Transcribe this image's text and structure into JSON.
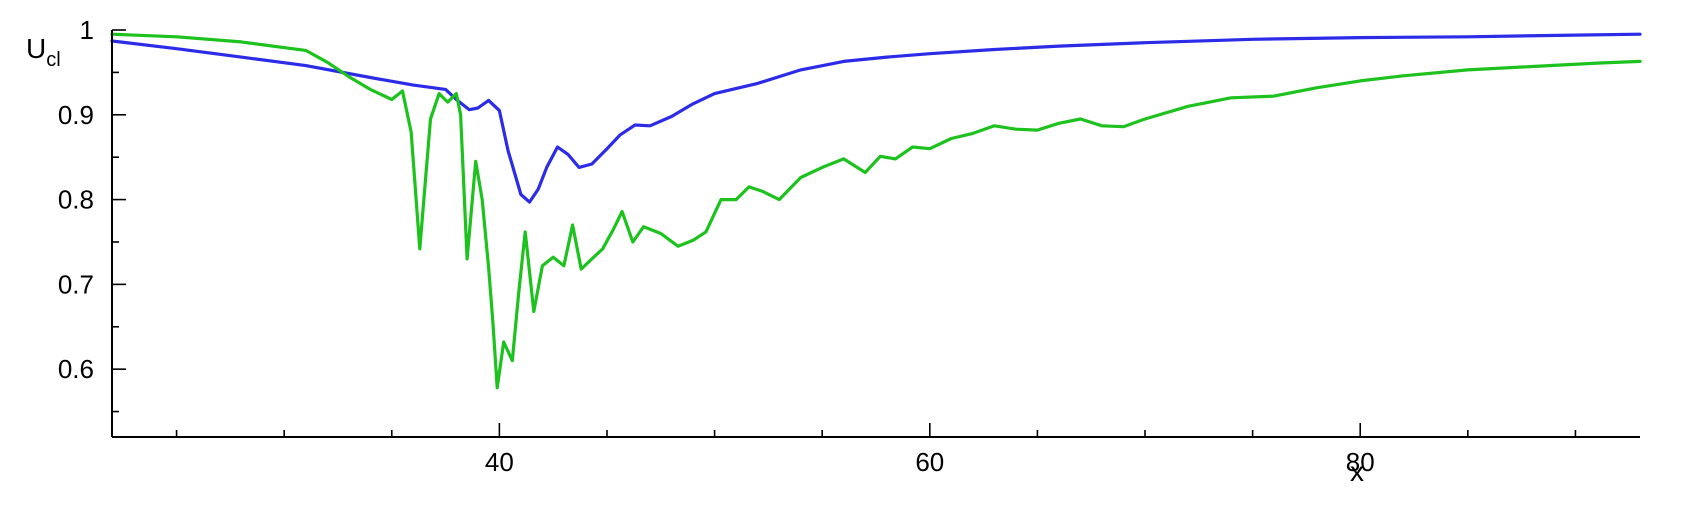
{
  "chart_data": {
    "type": "line",
    "xlabel": "x",
    "ylabel": {
      "main": "U",
      "sub": "cl"
    },
    "xlim": [
      22,
      93
    ],
    "ylim": [
      0.52,
      1.0
    ],
    "x_ticks": [
      {
        "value": 40,
        "label": "40"
      },
      {
        "value": 60,
        "label": "60"
      },
      {
        "value": 80,
        "label": "80"
      }
    ],
    "x_minor_ticks": [
      25,
      30,
      35,
      45,
      50,
      55,
      65,
      70,
      75,
      85,
      90
    ],
    "y_ticks": [
      {
        "value": 0.6,
        "label": "0.6"
      },
      {
        "value": 0.7,
        "label": "0.7"
      },
      {
        "value": 0.8,
        "label": "0.8"
      },
      {
        "value": 0.9,
        "label": "0.9"
      },
      {
        "value": 1.0,
        "label": "1"
      }
    ],
    "y_minor_ticks": [
      0.55,
      0.65,
      0.75,
      0.85,
      0.95
    ],
    "grid": false,
    "series": [
      {
        "color": "#2b2be8",
        "x": [
          22,
          25,
          28,
          31,
          34,
          36,
          37.5,
          38,
          38.6,
          39,
          39.5,
          40,
          40.4,
          41,
          41.4,
          41.8,
          42.2,
          42.7,
          43.2,
          43.7,
          44.3,
          45,
          45.6,
          46.3,
          47,
          48,
          49,
          50,
          52,
          54,
          56,
          58,
          60,
          63,
          66,
          70,
          75,
          80,
          85,
          90,
          93
        ],
        "y": [
          0.987,
          0.978,
          0.968,
          0.958,
          0.944,
          0.935,
          0.93,
          0.918,
          0.906,
          0.908,
          0.917,
          0.905,
          0.858,
          0.806,
          0.797,
          0.812,
          0.838,
          0.862,
          0.853,
          0.838,
          0.842,
          0.86,
          0.876,
          0.888,
          0.887,
          0.898,
          0.913,
          0.925,
          0.937,
          0.953,
          0.963,
          0.968,
          0.972,
          0.977,
          0.981,
          0.985,
          0.989,
          0.991,
          0.992,
          0.994,
          0.995
        ]
      },
      {
        "color": "#1ec21e",
        "x": [
          22,
          25,
          28,
          31,
          32,
          33,
          34,
          35,
          35.5,
          35.9,
          36.3,
          36.8,
          37.2,
          37.6,
          38,
          38.2,
          38.5,
          38.9,
          39.2,
          39.5,
          39.7,
          39.9,
          40.2,
          40.6,
          40.9,
          41.2,
          41.6,
          42,
          42.5,
          43,
          43.4,
          43.8,
          44.3,
          44.8,
          45.3,
          45.7,
          46.2,
          46.7,
          47.5,
          48.3,
          49,
          49.6,
          50.3,
          51,
          51.6,
          52.2,
          53,
          54,
          55,
          56,
          57,
          57.7,
          58.4,
          59.2,
          60,
          61,
          62,
          63,
          64,
          65,
          66,
          67,
          68,
          69,
          70,
          72,
          74,
          76,
          78,
          80,
          82,
          85,
          88,
          91,
          93
        ],
        "y": [
          0.995,
          0.992,
          0.986,
          0.976,
          0.962,
          0.945,
          0.93,
          0.918,
          0.928,
          0.88,
          0.742,
          0.895,
          0.925,
          0.915,
          0.925,
          0.9,
          0.73,
          0.845,
          0.8,
          0.72,
          0.655,
          0.578,
          0.632,
          0.61,
          0.69,
          0.762,
          0.668,
          0.722,
          0.732,
          0.722,
          0.77,
          0.718,
          0.73,
          0.742,
          0.765,
          0.786,
          0.75,
          0.768,
          0.76,
          0.745,
          0.752,
          0.762,
          0.8,
          0.8,
          0.815,
          0.81,
          0.8,
          0.826,
          0.838,
          0.848,
          0.832,
          0.851,
          0.848,
          0.862,
          0.86,
          0.872,
          0.878,
          0.887,
          0.883,
          0.882,
          0.89,
          0.895,
          0.887,
          0.886,
          0.895,
          0.91,
          0.92,
          0.922,
          0.932,
          0.94,
          0.946,
          0.953,
          0.957,
          0.961,
          0.963
        ]
      }
    ]
  }
}
